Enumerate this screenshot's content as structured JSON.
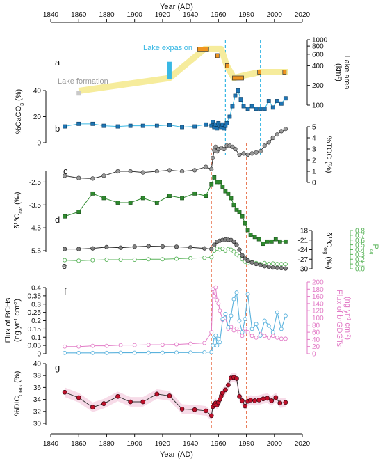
{
  "figure": {
    "x_axis_title": "Year (AD)",
    "x_ticks": [
      1840,
      1860,
      1880,
      1900,
      1920,
      1940,
      1960,
      1980,
      2000,
      2020
    ],
    "x_range": [
      1840,
      2020
    ],
    "dashed_red_lines": [
      1955,
      1980
    ],
    "dashed_cyan_lines": [
      1965,
      1990
    ],
    "colors": {
      "lake_band": "#f6ec9c",
      "lake_bar": "#f0951f",
      "cyan": "#39b8e4",
      "caco3": "#1e75b4",
      "toc": "#9a9a9a",
      "d13c_carb": "#2f8a2f",
      "d13c_org": "#808080",
      "paq": "#5ab45a",
      "bch": "#5ab2dd",
      "brgdgt": "#e27ac6",
      "dic": "#c0102a",
      "dic_band": "#f7dbe8",
      "red_dash": "#e8744f"
    }
  },
  "chart_data": [
    {
      "panel": "a",
      "type": "line",
      "ylabel": "Lake area (km²)",
      "yscale": "log",
      "y_ticks": [
        100,
        200,
        400,
        600,
        800,
        1000
      ],
      "ylim": [
        100,
        1000
      ],
      "annotations": [
        "Lake formation",
        "Lake expasion"
      ],
      "band": {
        "x": [
          1860,
          1925,
          1950,
          1962,
          1966,
          1971,
          1980,
          1990,
          2010
        ],
        "y": [
          165,
          260,
          720,
          720,
          400,
          260,
          290,
          320,
          320
        ]
      },
      "intervals": [
        {
          "x0": 1945,
          "x1": 1953,
          "y": 720
        },
        {
          "x0": 1958,
          "x1": 1960,
          "y": 570
        },
        {
          "x0": 1965,
          "x1": 1967,
          "y": 400
        },
        {
          "x0": 1970,
          "x1": 1978,
          "y": 260
        },
        {
          "x0": 1988,
          "x1": 1990,
          "y": 320
        },
        {
          "x0": 2006,
          "x1": 2008,
          "y": 320
        }
      ],
      "gray_bar": {
        "x": 1860,
        "y": [
          140,
          165
        ]
      },
      "cyan_bar": {
        "x": 1925,
        "y": [
          250,
          460
        ]
      }
    },
    {
      "panel": "b",
      "type": "line",
      "ylabel": "%CaCO₃ (%)",
      "y_ticks": [
        0,
        20,
        40
      ],
      "ylim": [
        0,
        40
      ],
      "x": [
        1850,
        1860,
        1870,
        1878,
        1888,
        1897,
        1906,
        1916,
        1925,
        1934,
        1943,
        1951,
        1955,
        1956,
        1957,
        1958,
        1959,
        1960,
        1961,
        1962,
        1963,
        1964,
        1965,
        1966,
        1968,
        1970,
        1972,
        1974,
        1976,
        1978,
        1981,
        1984,
        1987,
        1990,
        1993,
        1996,
        1999,
        2002,
        2005,
        2008
      ],
      "y": [
        12.5,
        14.5,
        14.5,
        13,
        12.5,
        13,
        13,
        13,
        13.5,
        12,
        12.5,
        14,
        13,
        16,
        12,
        14,
        11,
        15,
        13,
        12,
        14,
        11,
        13,
        15,
        20,
        28,
        36,
        40,
        33,
        28,
        26,
        28,
        26,
        26,
        26,
        32,
        27,
        32,
        30,
        34
      ]
    },
    {
      "panel": "c",
      "type": "line",
      "ylabel": "%TOC (%)",
      "y_ticks": [
        0,
        1,
        2,
        3,
        4,
        5
      ],
      "ylim": [
        0,
        5
      ],
      "x": [
        1850,
        1860,
        1870,
        1878,
        1888,
        1897,
        1906,
        1916,
        1925,
        1934,
        1943,
        1951,
        1955,
        1956,
        1957,
        1958,
        1959,
        1960,
        1962,
        1964,
        1966,
        1968,
        1970,
        1972,
        1975,
        1978,
        1981,
        1984,
        1987,
        1990,
        1993,
        1996,
        1999,
        2002,
        2005,
        2008
      ],
      "y": [
        0.6,
        0.4,
        0.35,
        0.6,
        1.0,
        1.0,
        0.9,
        1.0,
        1.1,
        1.0,
        1.1,
        1.4,
        1.2,
        2.2,
        2.9,
        3.2,
        2.8,
        3.0,
        3.1,
        3.0,
        3.3,
        3.3,
        3.2,
        3.0,
        2.5,
        2.6,
        2.5,
        2.6,
        2.7,
        2.8,
        3.3,
        3.6,
        4.0,
        4.3,
        4.6,
        4.8
      ]
    },
    {
      "panel": "d",
      "type": "line",
      "ylabel": "δ¹³C_car (‰)",
      "y_ticks": [
        -2.5,
        -3.5,
        -4.5,
        -5.5
      ],
      "ylim": [
        -5.5,
        -2.0
      ],
      "x": [
        1850,
        1860,
        1870,
        1878,
        1888,
        1897,
        1906,
        1916,
        1925,
        1934,
        1943,
        1951,
        1955,
        1957,
        1959,
        1961,
        1963,
        1965,
        1967,
        1969,
        1971,
        1973,
        1975,
        1977,
        1979,
        1981,
        1983,
        1986,
        1989,
        1992,
        1995,
        1998,
        2001,
        2004,
        2008
      ],
      "y": [
        -4.0,
        -3.8,
        -3.0,
        -3.2,
        -3.4,
        -3.4,
        -3.2,
        -3.4,
        -3.1,
        -3.2,
        -3.0,
        -3.1,
        -2.6,
        -2.3,
        -2.5,
        -2.5,
        -2.7,
        -2.9,
        -3.0,
        -3.2,
        -3.5,
        -3.7,
        -3.8,
        -4.0,
        -4.3,
        -4.6,
        -4.8,
        -4.9,
        -5.0,
        -5.2,
        -5.1,
        -5.1,
        -5.0,
        -5.1,
        -5.1
      ]
    },
    {
      "panel": "e",
      "type": "line",
      "series": [
        {
          "name": "δ¹³C_org",
          "ylabel": "δ¹³C_org (‰)",
          "y_ticks": [
            -18,
            -21,
            -24,
            -27,
            -30
          ],
          "ylim": [
            -30,
            -18
          ],
          "x": [
            1850,
            1860,
            1870,
            1880,
            1890,
            1900,
            1910,
            1920,
            1930,
            1940,
            1950,
            1955,
            1957,
            1959,
            1961,
            1963,
            1965,
            1967,
            1969,
            1971,
            1973,
            1975,
            1977,
            1979,
            1981,
            1984,
            1987,
            1990,
            1993,
            1996,
            1999,
            2002,
            2005,
            2008
          ],
          "y": [
            -23.8,
            -23.8,
            -23.6,
            -23.2,
            -23.4,
            -23.1,
            -22.9,
            -23.0,
            -23.1,
            -23.3,
            -23.6,
            -23.8,
            -22.5,
            -21.5,
            -21.2,
            -21.0,
            -20.8,
            -20.9,
            -21.0,
            -21.5,
            -22.5,
            -24.0,
            -25.8,
            -26.8,
            -27.4,
            -28.0,
            -28.5,
            -28.9,
            -29.2,
            -29.4,
            -29.6,
            -29.7,
            -29.8,
            -29.9
          ]
        },
        {
          "name": "P_aq",
          "ylabel": "P_aq",
          "y_ticks": [
            0.0,
            0.1,
            0.2,
            0.3,
            0.4,
            0.5,
            0.6,
            0.7,
            0.8
          ],
          "ylim": [
            0.0,
            0.8
          ],
          "x": [
            1850,
            1860,
            1870,
            1880,
            1890,
            1900,
            1910,
            1920,
            1930,
            1940,
            1950,
            1955,
            1957,
            1959,
            1961,
            1963,
            1965,
            1967,
            1969,
            1971,
            1973,
            1975,
            1977,
            1979,
            1981,
            1984,
            1987,
            1990,
            1993,
            1996,
            1999,
            2002,
            2005,
            2008
          ],
          "y": [
            0.18,
            0.17,
            0.18,
            0.19,
            0.19,
            0.19,
            0.2,
            0.2,
            0.21,
            0.22,
            0.23,
            0.24,
            0.38,
            0.42,
            0.4,
            0.42,
            0.38,
            0.41,
            0.4,
            0.36,
            0.3,
            0.26,
            0.2,
            0.15,
            0.12,
            0.14,
            0.12,
            0.1,
            0.12,
            0.1,
            0.11,
            0.1,
            0.1,
            0.1
          ]
        }
      ]
    },
    {
      "panel": "f",
      "type": "line",
      "series": [
        {
          "name": "Flux of BCHs",
          "ylabel": "Flux of BCHs (ng yr⁻¹ cm⁻²)",
          "y_ticks": [
            0,
            0.05,
            0.1,
            0.15,
            0.2,
            0.25,
            0.3,
            0.35,
            0.4
          ],
          "ylim": [
            0,
            0.4
          ],
          "x": [
            1850,
            1860,
            1870,
            1880,
            1890,
            1900,
            1910,
            1920,
            1930,
            1940,
            1950,
            1955,
            1956,
            1957,
            1958,
            1959,
            1960,
            1961,
            1963,
            1965,
            1967,
            1969,
            1971,
            1973,
            1975,
            1977,
            1979,
            1981,
            1984,
            1987,
            1990,
            1993,
            1996,
            1999,
            2002,
            2005,
            2008
          ],
          "y": [
            0.005,
            0.005,
            0.005,
            0.005,
            0.006,
            0.006,
            0.006,
            0.006,
            0.007,
            0.007,
            0.008,
            0.01,
            0.05,
            0.1,
            0.11,
            0.05,
            0.09,
            0.07,
            0.21,
            0.24,
            0.16,
            0.23,
            0.33,
            0.37,
            0.2,
            0.13,
            0.21,
            0.36,
            0.15,
            0.18,
            0.11,
            0.2,
            0.17,
            0.13,
            0.25,
            0.15,
            0.23
          ]
        },
        {
          "name": "Flux of brGDGTs",
          "ylabel": "Flux of brGDGTs (ng yr⁻¹ cm⁻²)",
          "y_ticks": [
            0,
            20,
            40,
            60,
            80,
            100,
            120,
            140,
            160,
            180,
            200
          ],
          "ylim": [
            0,
            200
          ],
          "x": [
            1850,
            1860,
            1870,
            1880,
            1890,
            1900,
            1910,
            1920,
            1930,
            1940,
            1950,
            1955,
            1956,
            1957,
            1958,
            1959,
            1960,
            1961,
            1963,
            1965,
            1967,
            1969,
            1971,
            1973,
            1975,
            1977,
            1979,
            1981,
            1984,
            1987,
            1990,
            1993,
            1996,
            1999,
            2002,
            2005,
            2008
          ],
          "y": [
            20,
            20,
            22,
            22,
            24,
            24,
            25,
            25,
            26,
            28,
            30,
            60,
            180,
            160,
            185,
            150,
            140,
            120,
            95,
            100,
            70,
            75,
            65,
            70,
            60,
            50,
            70,
            60,
            50,
            45,
            55,
            50,
            45,
            50,
            45,
            42,
            42
          ]
        }
      ]
    },
    {
      "panel": "g",
      "type": "line",
      "ylabel": "%DIC_ORG (%)",
      "y_ticks": [
        30,
        32,
        34,
        36,
        38,
        40
      ],
      "ylim": [
        30,
        40
      ],
      "x": [
        1850,
        1860,
        1870,
        1878,
        1888,
        1897,
        1906,
        1916,
        1925,
        1934,
        1943,
        1951,
        1955,
        1956,
        1957,
        1958,
        1959,
        1960,
        1961,
        1962,
        1963,
        1965,
        1967,
        1969,
        1971,
        1973,
        1975,
        1977,
        1979,
        1981,
        1983,
        1986,
        1989,
        1992,
        1995,
        1998,
        2001,
        2004,
        2008
      ],
      "y": [
        35.2,
        34.3,
        32.7,
        33.3,
        34.5,
        33.6,
        33.6,
        34.9,
        34.6,
        32.4,
        32.3,
        32.1,
        31.3,
        32.8,
        33.2,
        33.4,
        33.1,
        33.5,
        34.0,
        34.6,
        35.1,
        35.6,
        36.4,
        37.6,
        37.7,
        37.5,
        34.5,
        33.8,
        32.9,
        33.7,
        33.9,
        33.8,
        33.9,
        34.1,
        34.2,
        33.8,
        34.3,
        33.4,
        33.5
      ]
    }
  ],
  "panel_labels": [
    "a",
    "b",
    "c",
    "d",
    "e",
    "f",
    "g"
  ]
}
